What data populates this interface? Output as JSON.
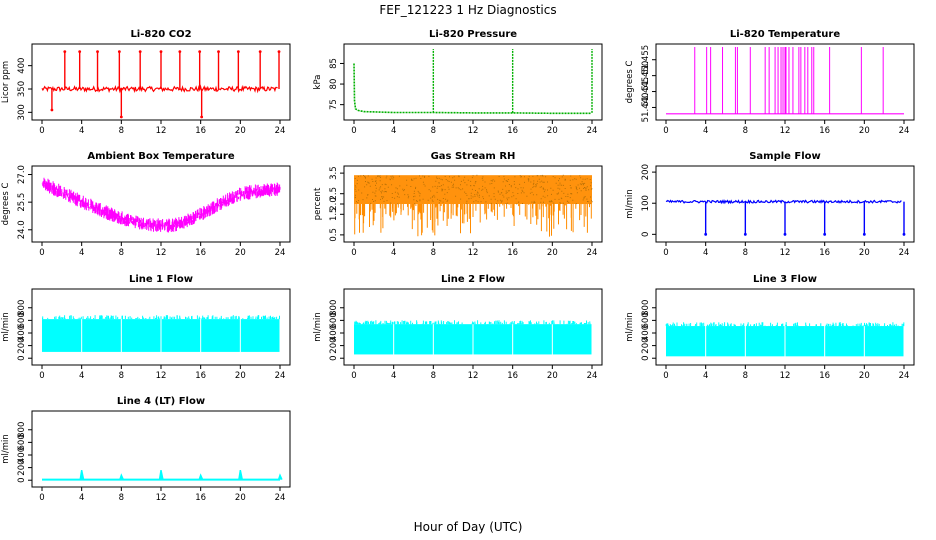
{
  "figure": {
    "title": "FEF_121223  1 Hz Diagnostics",
    "xlabel": "Hour of Day (UTC)"
  },
  "chart_data": [
    {
      "type": "line",
      "title": "Li-820 CO2",
      "ylabel": "Licor ppm",
      "color": "#ff0000",
      "xlim": [
        0,
        24
      ],
      "ylim": [
        290,
        440
      ],
      "xticks": [
        0,
        4,
        8,
        12,
        16,
        20,
        24
      ],
      "yticks": [
        300,
        350,
        400
      ],
      "baseline": 350,
      "noise": 5,
      "spikes": [
        {
          "x": 1.0,
          "y": 305
        },
        {
          "x": 2.3,
          "y": 430
        },
        {
          "x": 3.8,
          "y": 430
        },
        {
          "x": 5.6,
          "y": 430
        },
        {
          "x": 7.8,
          "y": 430
        },
        {
          "x": 8.0,
          "y": 290
        },
        {
          "x": 9.9,
          "y": 430
        },
        {
          "x": 12.0,
          "y": 430
        },
        {
          "x": 13.9,
          "y": 430
        },
        {
          "x": 15.9,
          "y": 430
        },
        {
          "x": 16.1,
          "y": 290
        },
        {
          "x": 17.8,
          "y": 430
        },
        {
          "x": 19.8,
          "y": 430
        },
        {
          "x": 22.0,
          "y": 430
        },
        {
          "x": 23.9,
          "y": 430
        }
      ]
    },
    {
      "type": "line",
      "title": "Li-820 Pressure",
      "ylabel": "kPa",
      "color": "#00b000",
      "xlim": [
        0,
        24
      ],
      "ylim": [
        72,
        89
      ],
      "xticks": [
        0,
        4,
        8,
        12,
        16,
        20,
        24
      ],
      "yticks": [
        75,
        80,
        85
      ],
      "series": [
        {
          "x": [
            0,
            0.05,
            0.15,
            0.4,
            1,
            4,
            8,
            12,
            16,
            20,
            23.9
          ],
          "y": [
            85,
            76,
            74,
            73.6,
            73.3,
            73.1,
            73.1,
            73.0,
            73.0,
            72.9,
            72.9
          ]
        }
      ],
      "spikes": [
        {
          "x": 8.0,
          "y": 88.5
        },
        {
          "x": 16.0,
          "y": 88.5
        },
        {
          "x": 24.0,
          "y": 88.5
        }
      ]
    },
    {
      "type": "line",
      "title": "Li-820 Temperature",
      "ylabel": "degrees C",
      "color": "#ff00ff",
      "xlim": [
        0,
        24
      ],
      "ylim": [
        51.437,
        51.459
      ],
      "xticks": [
        0,
        4,
        8,
        12,
        16,
        20,
        24
      ],
      "yticks": [
        51.44,
        51.445,
        51.45,
        51.455
      ],
      "baseline": 51.438,
      "spike_x": [
        2.9,
        4.1,
        4.5,
        5.7,
        7.0,
        7.2,
        8.5,
        10.0,
        10.4,
        11.0,
        11.3,
        11.6,
        11.8,
        12.0,
        12.1,
        12.4,
        12.8,
        13.4,
        13.6,
        14.0,
        14.3,
        14.7,
        14.9,
        16.5,
        19.7,
        21.9
      ],
      "spike_top": 51.459
    },
    {
      "type": "line",
      "title": "Ambient Box Temperature",
      "ylabel": "degrees C",
      "color": "#ff00ff",
      "xlim": [
        0,
        24
      ],
      "ylim": [
        23.5,
        27.3
      ],
      "xticks": [
        0,
        4,
        8,
        12,
        16,
        20,
        24
      ],
      "yticks": [
        24.0,
        25.5,
        27.0
      ],
      "series": [
        {
          "x": [
            0,
            2,
            4,
            6,
            8,
            10,
            12,
            13,
            14,
            16,
            18,
            20,
            22,
            24
          ],
          "y": [
            26.6,
            26.1,
            25.6,
            25.1,
            24.7,
            24.4,
            24.3,
            24.3,
            24.4,
            24.9,
            25.5,
            26.0,
            26.2,
            26.3
          ]
        }
      ],
      "band": 0.5
    },
    {
      "type": "line",
      "title": "Gas Stream RH",
      "ylabel": "percent",
      "color": "#ff8c00",
      "marker_color": "#8b5a00",
      "xlim": [
        0,
        24
      ],
      "ylim": [
        0.3,
        3.7
      ],
      "xticks": [
        0,
        4,
        8,
        12,
        16,
        20,
        24
      ],
      "yticks": [
        0.5,
        1.5,
        2.0,
        2.5,
        3.5
      ],
      "upper": 3.4,
      "lower": 2.0,
      "dip_min": 0.4
    },
    {
      "type": "line",
      "title": "Sample Flow",
      "ylabel": "ml/min",
      "color": "#0000ff",
      "xlim": [
        0,
        24
      ],
      "ylim": [
        -15,
        210
      ],
      "xticks": [
        0,
        4,
        8,
        12,
        16,
        20,
        24
      ],
      "yticks": [
        0,
        100,
        200
      ],
      "baseline": 105,
      "noise": 4,
      "dips": [
        {
          "x": 4,
          "y": 0
        },
        {
          "x": 8,
          "y": 0
        },
        {
          "x": 12,
          "y": 0
        },
        {
          "x": 16,
          "y": 0
        },
        {
          "x": 20,
          "y": 0
        },
        {
          "x": 24,
          "y": 0
        }
      ]
    },
    {
      "type": "area",
      "title": "Line 1 Flow",
      "ylabel": "ml/min",
      "color": "#00ffff",
      "xlim": [
        0,
        24
      ],
      "ylim": [
        -60,
        1050
      ],
      "xticks": [
        0,
        4,
        8,
        12,
        16,
        20,
        24
      ],
      "yticks": [
        0,
        200,
        400,
        600,
        800
      ],
      "low": 100,
      "high": 620,
      "gaps": [
        4,
        8,
        12,
        16,
        20
      ]
    },
    {
      "type": "area",
      "title": "Line 2 Flow",
      "ylabel": "ml/min",
      "color": "#00ffff",
      "xlim": [
        0,
        24
      ],
      "ylim": [
        -60,
        1050
      ],
      "xticks": [
        0,
        4,
        8,
        12,
        16,
        20,
        24
      ],
      "yticks": [
        0,
        200,
        400,
        600,
        800
      ],
      "low": 60,
      "high": 540,
      "gaps": [
        4,
        8,
        12,
        16,
        20
      ]
    },
    {
      "type": "area",
      "title": "Line 3 Flow",
      "ylabel": "ml/min",
      "color": "#00ffff",
      "xlim": [
        0,
        24
      ],
      "ylim": [
        -60,
        1050
      ],
      "xticks": [
        0,
        4,
        8,
        12,
        16,
        20,
        24
      ],
      "yticks": [
        0,
        200,
        400,
        600,
        800
      ],
      "low": 30,
      "high": 510,
      "gaps": [
        4,
        8,
        12,
        16,
        20
      ]
    },
    {
      "type": "line",
      "title": "Line 4 (LT) Flow",
      "ylabel": "ml/min",
      "color": "#00ffff",
      "xlim": [
        0,
        24
      ],
      "ylim": [
        -60,
        1050
      ],
      "xticks": [
        0,
        4,
        8,
        12,
        16,
        20,
        24
      ],
      "yticks": [
        0,
        200,
        400,
        600,
        800
      ],
      "baseline": 10,
      "spikes": [
        {
          "x": 4,
          "y": 160
        },
        {
          "x": 8,
          "y": 80
        },
        {
          "x": 12,
          "y": 160
        },
        {
          "x": 16,
          "y": 80
        },
        {
          "x": 20,
          "y": 160
        },
        {
          "x": 24,
          "y": 80
        }
      ]
    }
  ]
}
